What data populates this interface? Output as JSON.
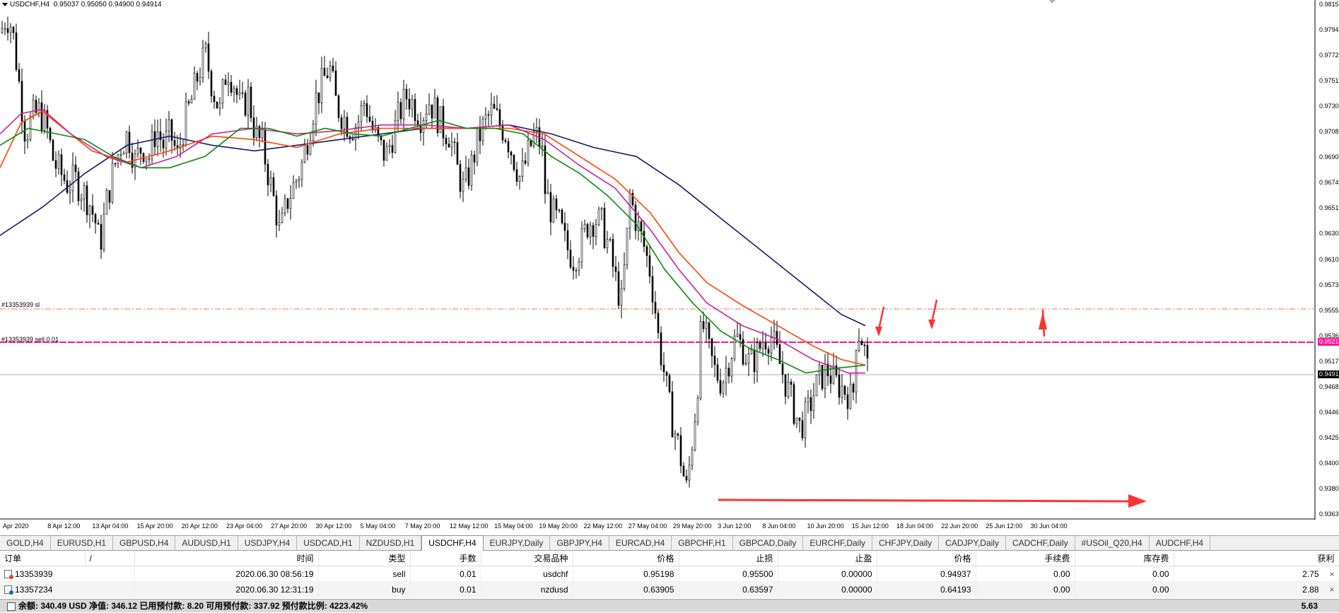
{
  "chart": {
    "title": "USDCHF,H4",
    "ohlc": "0.95037 0.95050 0.94900 0.94914",
    "orders": [
      {
        "label": "#13353939 sl"
      },
      {
        "label": "#13353939 sell 0.01"
      }
    ],
    "price_axis": {
      "ticks": [
        "0.9815",
        "0.9794",
        "0.9772",
        "0.9751",
        "0.9730",
        "0.9708",
        "0.9690",
        "0.9674",
        "0.9651",
        "0.9630",
        "0.9610",
        "0.9573",
        "0.9555",
        "0.9536",
        "0.9517",
        "0.9468",
        "0.9446",
        "0.9425",
        "0.9400",
        "0.9380",
        "0.9363"
      ],
      "current_price_tag": "0.9521",
      "bid_tag": "0.9491"
    },
    "time_axis": [
      "Apr 2020",
      "8 Apr 12:00",
      "13 Apr 04:00",
      "15 Apr 20:00",
      "20 Apr 12:00",
      "23 Apr 04:00",
      "27 Apr 20:00",
      "30 Apr 12:00",
      "5 May 04:00",
      "7 May 20:00",
      "12 May 12:00",
      "15 May 04:00",
      "19 May 20:00",
      "22 May 12:00",
      "27 May 04:00",
      "29 May 20:00",
      "3 Jun 12:00",
      "8 Jun 04:00",
      "10 Jun 20:00",
      "15 Jun 12:00",
      "18 Jun 04:00",
      "22 Jun 20:00",
      "25 Jun 12:00",
      "30 Jun 04:00"
    ],
    "colors": {
      "ma_navy": "#1a1a6e",
      "ma_orange": "#ff4500",
      "ma_magenta": "#cc2299",
      "ma_green": "#0a8a0a",
      "sl_line": "#ff8c69",
      "entry_line": "#ff1493",
      "arrow": "#ff3333"
    }
  },
  "tabs": [
    "GOLD,H4",
    "EURUSD,H1",
    "GBPUSD,H4",
    "AUDUSD,H1",
    "USDJPY,H4",
    "USDCAD,H1",
    "NZDUSD,H1",
    "USDCHF,H4",
    "EURJPY,Daily",
    "GBPJPY,H4",
    "EURCAD,H4",
    "GBPCHF,H1",
    "GBPCAD,Daily",
    "EURCHF,Daily",
    "CHFJPY,Daily",
    "CADJPY,Daily",
    "CADCHF,Daily",
    "#USOil_Q20,H4",
    "AUDCHF,H4"
  ],
  "active_tab": "USDCHF,H4",
  "terminal": {
    "headers": [
      "订单",
      "/",
      "时间",
      "类型",
      "手数",
      "交易品种",
      "价格",
      "止损",
      "止盈",
      "价格",
      "手续费",
      "库存费",
      "获利"
    ],
    "rows": [
      {
        "order": "13353939",
        "time": "2020.06.30 08:56:19",
        "type": "sell",
        "lots": "0.01",
        "symbol": "usdchf",
        "price": "0.95198",
        "sl": "0.95500",
        "tp": "0.00000",
        "cur_price": "0.94937",
        "commission": "0.00",
        "swap": "0.00",
        "profit": "2.75"
      },
      {
        "order": "13357234",
        "time": "2020.06.30 12:31:19",
        "type": "buy",
        "lots": "0.01",
        "symbol": "nzdusd",
        "price": "0.63905",
        "sl": "0.63597",
        "tp": "0.00000",
        "cur_price": "0.64193",
        "commission": "0.00",
        "swap": "0.00",
        "profit": "2.88"
      }
    ],
    "close_icon": "×",
    "balance_text": "余额: 340.49 USD  净值: 346.12  已用预付款: 8.20  可用预付款: 337.92  预付款比例: 4223.42%",
    "total_profit": "5.63"
  },
  "price_path": [
    [
      0,
      0.979
    ],
    [
      8,
      0.9805
    ],
    [
      16,
      0.9795
    ],
    [
      25,
      0.975
    ],
    [
      35,
      0.97
    ],
    [
      45,
      0.9715
    ],
    [
      55,
      0.972
    ],
    [
      65,
      0.9705
    ],
    [
      75,
      0.9675
    ],
    [
      85,
      0.9665
    ],
    [
      95,
      0.9655
    ],
    [
      105,
      0.966
    ],
    [
      115,
      0.965
    ],
    [
      125,
      0.964
    ],
    [
      135,
      0.962
    ],
    [
      140,
      0.96
    ],
    [
      150,
      0.964
    ],
    [
      160,
      0.967
    ],
    [
      170,
      0.969
    ],
    [
      180,
      0.97
    ],
    [
      190,
      0.9675
    ],
    [
      200,
      0.969
    ],
    [
      210,
      0.968
    ],
    [
      220,
      0.9705
    ],
    [
      230,
      0.969
    ],
    [
      240,
      0.97
    ],
    [
      250,
      0.968
    ],
    [
      260,
      0.971
    ],
    [
      270,
      0.973
    ],
    [
      280,
      0.9755
    ],
    [
      290,
      0.977
    ],
    [
      300,
      0.974
    ],
    [
      310,
      0.972
    ],
    [
      320,
      0.976
    ],
    [
      330,
      0.9745
    ],
    [
      340,
      0.972
    ],
    [
      350,
      0.9735
    ],
    [
      360,
      0.97
    ],
    [
      370,
      0.969
    ],
    [
      380,
      0.966
    ],
    [
      390,
      0.963
    ],
    [
      395,
      0.961
    ],
    [
      405,
      0.964
    ],
    [
      415,
      0.9655
    ],
    [
      425,
      0.967
    ],
    [
      435,
      0.97
    ],
    [
      445,
      0.973
    ],
    [
      455,
      0.9745
    ],
    [
      465,
      0.976
    ],
    [
      475,
      0.9725
    ],
    [
      485,
      0.9715
    ],
    [
      495,
      0.9705
    ],
    [
      505,
      0.971
    ],
    [
      515,
      0.973
    ],
    [
      525,
      0.9705
    ],
    [
      535,
      0.969
    ],
    [
      545,
      0.968
    ],
    [
      555,
      0.97
    ],
    [
      565,
      0.972
    ],
    [
      575,
      0.9735
    ],
    [
      585,
      0.9725
    ],
    [
      595,
      0.9715
    ],
    [
      605,
      0.973
    ],
    [
      615,
      0.972
    ],
    [
      625,
      0.9705
    ],
    [
      635,
      0.97
    ],
    [
      645,
      0.967
    ],
    [
      655,
      0.965
    ],
    [
      665,
      0.967
    ],
    [
      675,
      0.9695
    ],
    [
      685,
      0.971
    ],
    [
      695,
      0.972
    ],
    [
      705,
      0.971
    ],
    [
      715,
      0.97
    ],
    [
      725,
      0.968
    ],
    [
      735,
      0.966
    ],
    [
      745,
      0.968
    ],
    [
      755,
      0.97
    ],
    [
      765,
      0.969
    ],
    [
      770,
      0.965
    ],
    [
      780,
      0.963
    ],
    [
      790,
      0.962
    ],
    [
      800,
      0.96
    ],
    [
      810,
      0.959
    ],
    [
      820,
      0.96
    ],
    [
      830,
      0.962
    ],
    [
      840,
      0.9625
    ],
    [
      850,
      0.962
    ],
    [
      860,
      0.96
    ],
    [
      870,
      0.957
    ],
    [
      878,
      0.955
    ],
    [
      885,
      0.96
    ],
    [
      890,
      0.9645
    ],
    [
      900,
      0.962
    ],
    [
      910,
      0.96
    ],
    [
      918,
      0.958
    ],
    [
      925,
      0.955
    ],
    [
      930,
      0.952
    ],
    [
      938,
      0.949
    ],
    [
      945,
      0.946
    ],
    [
      952,
      0.944
    ],
    [
      960,
      0.942
    ],
    [
      965,
      0.94
    ],
    [
      970,
      0.9385
    ],
    [
      975,
      0.941
    ],
    [
      980,
      0.944
    ],
    [
      985,
      0.947
    ],
    [
      990,
      0.952
    ],
    [
      995,
      0.953
    ],
    [
      1000,
      0.951
    ],
    [
      1010,
      0.949
    ],
    [
      1020,
      0.948
    ],
    [
      1030,
      0.95
    ],
    [
      1040,
      0.952
    ],
    [
      1050,
      0.951
    ],
    [
      1060,
      0.9495
    ],
    [
      1070,
      0.9505
    ],
    [
      1080,
      0.952
    ],
    [
      1090,
      0.952
    ],
    [
      1100,
      0.95
    ],
    [
      1110,
      0.948
    ],
    [
      1120,
      0.946
    ],
    [
      1130,
      0.944
    ],
    [
      1140,
      0.945
    ],
    [
      1150,
      0.947
    ],
    [
      1160,
      0.9485
    ],
    [
      1170,
      0.949
    ],
    [
      1180,
      0.948
    ],
    [
      1190,
      0.9475
    ],
    [
      1200,
      0.947
    ],
    [
      1205,
      0.946
    ],
    [
      1210,
      0.952
    ],
    [
      1215,
      0.9525
    ],
    [
      1220,
      0.9515
    ],
    [
      1226,
      0.9492
    ]
  ],
  "ma_series": {
    "navy": [
      [
        0,
        0.961
      ],
      [
        60,
        0.9635
      ],
      [
        120,
        0.9665
      ],
      [
        180,
        0.969
      ],
      [
        240,
        0.9698
      ],
      [
        300,
        0.969
      ],
      [
        360,
        0.9685
      ],
      [
        420,
        0.969
      ],
      [
        480,
        0.9695
      ],
      [
        540,
        0.97
      ],
      [
        600,
        0.9705
      ],
      [
        660,
        0.9705
      ],
      [
        720,
        0.9708
      ],
      [
        780,
        0.97
      ],
      [
        840,
        0.9688
      ],
      [
        900,
        0.968
      ],
      [
        960,
        0.9655
      ],
      [
        1020,
        0.9625
      ],
      [
        1080,
        0.9595
      ],
      [
        1140,
        0.9565
      ],
      [
        1190,
        0.954
      ],
      [
        1224,
        0.953
      ]
    ],
    "orange": [
      [
        0,
        0.967
      ],
      [
        30,
        0.971
      ],
      [
        60,
        0.972
      ],
      [
        90,
        0.9705
      ],
      [
        130,
        0.9685
      ],
      [
        180,
        0.9675
      ],
      [
        240,
        0.9685
      ],
      [
        300,
        0.9698
      ],
      [
        360,
        0.9695
      ],
      [
        420,
        0.9688
      ],
      [
        480,
        0.97
      ],
      [
        540,
        0.9705
      ],
      [
        600,
        0.9705
      ],
      [
        660,
        0.9705
      ],
      [
        720,
        0.9705
      ],
      [
        770,
        0.97
      ],
      [
        820,
        0.968
      ],
      [
        870,
        0.966
      ],
      [
        920,
        0.963
      ],
      [
        960,
        0.9595
      ],
      [
        1000,
        0.9568
      ],
      [
        1050,
        0.9548
      ],
      [
        1100,
        0.953
      ],
      [
        1150,
        0.9512
      ],
      [
        1190,
        0.95
      ],
      [
        1224,
        0.9495
      ]
    ],
    "magenta": [
      [
        0,
        0.97
      ],
      [
        30,
        0.9718
      ],
      [
        60,
        0.9722
      ],
      [
        100,
        0.97
      ],
      [
        150,
        0.968
      ],
      [
        200,
        0.967
      ],
      [
        250,
        0.968
      ],
      [
        300,
        0.97
      ],
      [
        360,
        0.9705
      ],
      [
        420,
        0.97
      ],
      [
        480,
        0.9703
      ],
      [
        540,
        0.9708
      ],
      [
        600,
        0.9708
      ],
      [
        660,
        0.9705
      ],
      [
        720,
        0.9708
      ],
      [
        770,
        0.9695
      ],
      [
        820,
        0.9672
      ],
      [
        870,
        0.9652
      ],
      [
        920,
        0.9615
      ],
      [
        960,
        0.958
      ],
      [
        1000,
        0.955
      ],
      [
        1050,
        0.953
      ],
      [
        1100,
        0.9518
      ],
      [
        1150,
        0.95
      ],
      [
        1200,
        0.9488
      ],
      [
        1224,
        0.9488
      ]
    ],
    "green": [
      [
        0,
        0.969
      ],
      [
        40,
        0.9705
      ],
      [
        80,
        0.97
      ],
      [
        120,
        0.9695
      ],
      [
        160,
        0.968
      ],
      [
        200,
        0.967
      ],
      [
        240,
        0.967
      ],
      [
        290,
        0.968
      ],
      [
        340,
        0.9705
      ],
      [
        380,
        0.9705
      ],
      [
        420,
        0.9698
      ],
      [
        460,
        0.9705
      ],
      [
        500,
        0.97
      ],
      [
        540,
        0.9698
      ],
      [
        580,
        0.9705
      ],
      [
        620,
        0.9712
      ],
      [
        660,
        0.9705
      ],
      [
        700,
        0.9705
      ],
      [
        740,
        0.97
      ],
      [
        780,
        0.968
      ],
      [
        820,
        0.9665
      ],
      [
        860,
        0.9645
      ],
      [
        900,
        0.962
      ],
      [
        940,
        0.958
      ],
      [
        980,
        0.955
      ],
      [
        1020,
        0.9525
      ],
      [
        1060,
        0.951
      ],
      [
        1100,
        0.95
      ],
      [
        1140,
        0.9488
      ],
      [
        1180,
        0.9492
      ],
      [
        1224,
        0.9495
      ]
    ]
  }
}
